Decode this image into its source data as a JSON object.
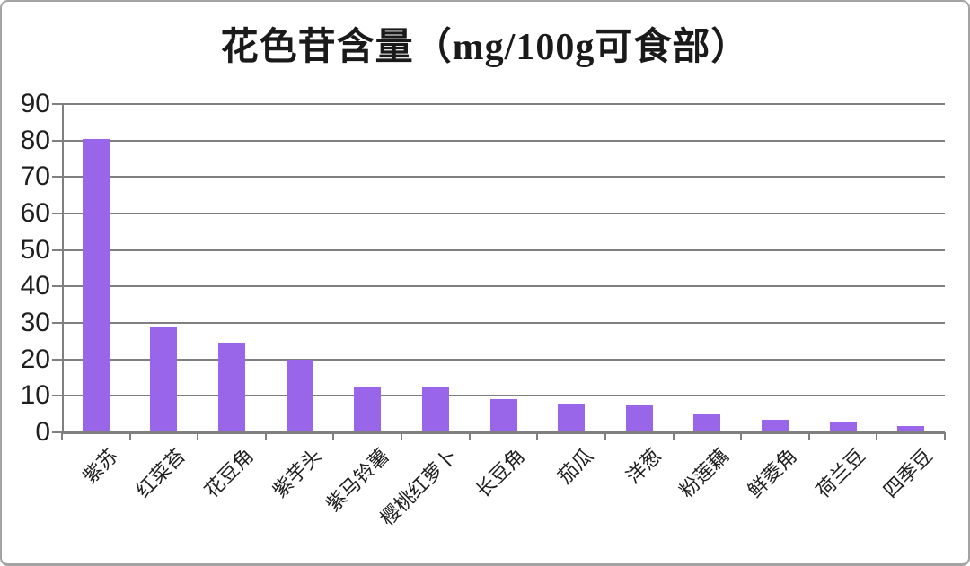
{
  "frame": {
    "background": "#ffffff",
    "border_color": "#a3a3a3"
  },
  "chart_data": {
    "type": "bar",
    "title": "花色苷含量（mg/100g可食部）",
    "categories": [
      "紫苏",
      "红菜苔",
      "花豆角",
      "紫芋头",
      "紫马铃薯",
      "樱桃红萝卜",
      "长豆角",
      "茄瓜",
      "洋葱",
      "粉莲藕",
      "鲜菱角",
      "荷兰豆",
      "四季豆"
    ],
    "values": [
      80.5,
      29,
      24.5,
      20,
      12.5,
      12.2,
      9.2,
      7.8,
      7.3,
      4.8,
      3.5,
      3,
      1.8
    ],
    "xlabel": "",
    "ylabel": "",
    "ylim": [
      0,
      90
    ],
    "yticks": [
      0,
      10,
      20,
      30,
      40,
      50,
      60,
      70,
      80,
      90
    ],
    "grid": true,
    "legend": false,
    "bar_color": "#9966EA",
    "grid_color": "#7f7f7f",
    "axis_color": "#7f7f7f",
    "text_color": "#1f1f1f"
  }
}
